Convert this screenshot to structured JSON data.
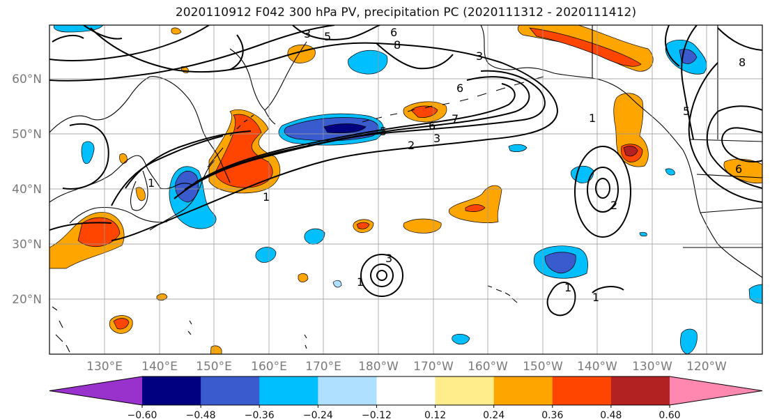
{
  "title": "2020110912 F042 300 hPa PV, precipitation PC (2020111312 - 2020111412)",
  "lat_labels": [
    "60°N",
    "50°N",
    "40°N",
    "30°N",
    "20°N"
  ],
  "lon_labels": [
    "130°E",
    "140°E",
    "150°E",
    "160°E",
    "170°E",
    "180°W",
    "170°W",
    "160°W",
    "150°W",
    "140°W",
    "130°W",
    "120°W"
  ],
  "colorbar": {
    "colors": [
      "#9932cc",
      "#000080",
      "#3a5bcd",
      "#00bfff",
      "#b0e0ff",
      "#ffffff",
      "#ffec8b",
      "#ffa500",
      "#ff4500",
      "#b22222",
      "#ff88b0"
    ],
    "ticks": [
      "−0.60",
      "−0.48",
      "−0.36",
      "−0.24",
      "−0.12",
      "0.12",
      "0.24",
      "0.36",
      "0.48",
      "0.60"
    ]
  },
  "contour_labels": [
    "3",
    "5",
    "6",
    "8",
    "3",
    "6",
    "7",
    "6",
    "5",
    "2",
    "3",
    "1",
    "1",
    "1",
    "2",
    "3",
    "1",
    "1",
    "1",
    "6",
    "8",
    "5"
  ]
}
